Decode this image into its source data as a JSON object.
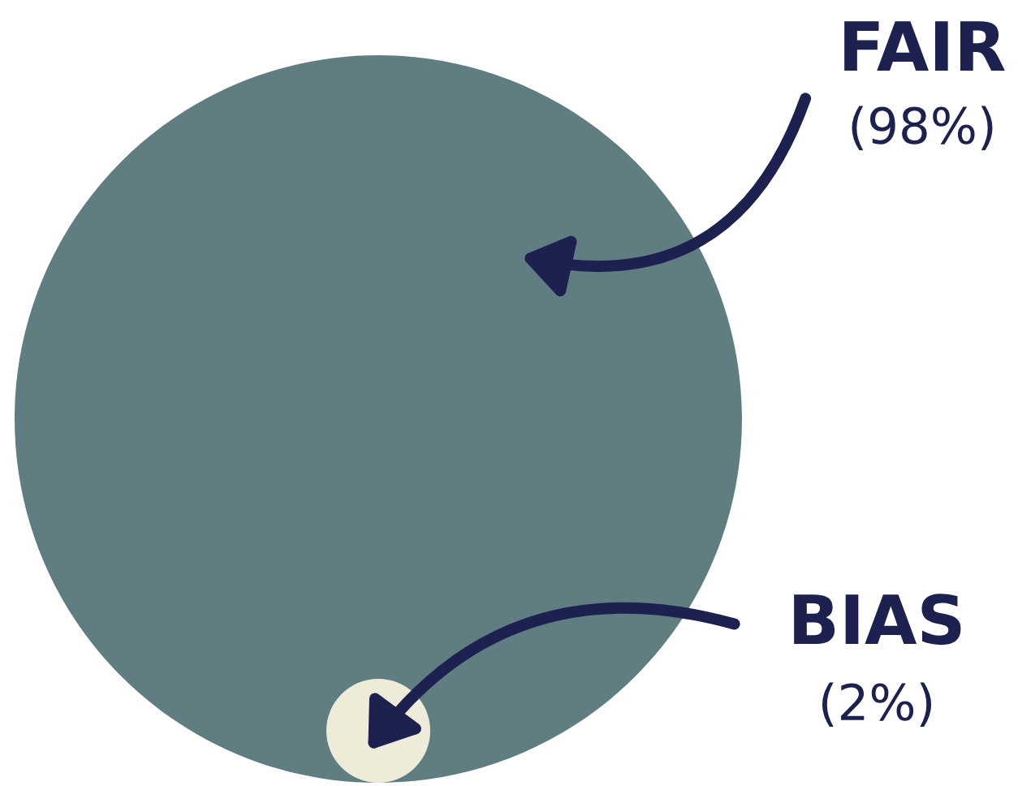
{
  "chart_data": {
    "type": "other",
    "categories": [
      "FAIR",
      "BIAS"
    ],
    "values": [
      98,
      2
    ],
    "value_labels": [
      "(98%)",
      "(2%)"
    ],
    "colors": [
      "#607e82",
      "#eeecd9"
    ]
  }
}
